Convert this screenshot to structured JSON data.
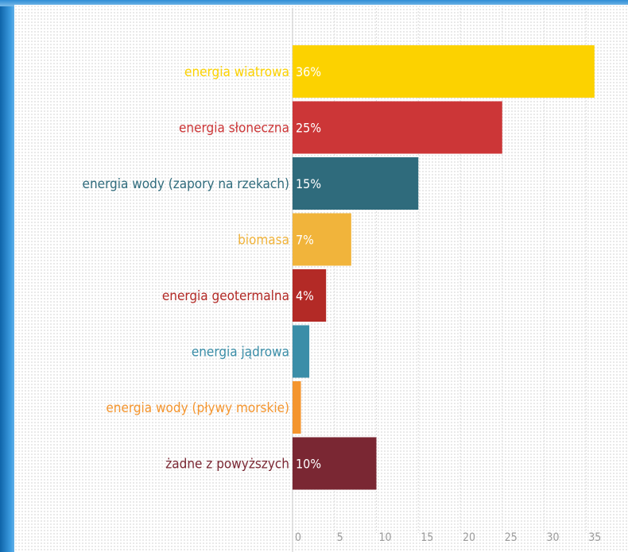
{
  "chart_data": {
    "type": "bar",
    "orientation": "horizontal",
    "title": "",
    "xlabel": "",
    "ylabel": "",
    "categories": [
      "energia wiatrowa",
      "energia słoneczna",
      "energia wody (zapory na rzekach)",
      "biomasa",
      "energia geotermalna",
      "energia jądrowa",
      "energia wody (pływy morskie)",
      "żadne z powyższych"
    ],
    "values": [
      36,
      25,
      15,
      7,
      4,
      2,
      1,
      10
    ],
    "value_labels": [
      "36%",
      "25%",
      "15%",
      "7%",
      "4%",
      "",
      "",
      "10%"
    ],
    "colors": [
      "#fcd200",
      "#cc3637",
      "#2f6b7c",
      "#f1b43b",
      "#b32a26",
      "#3b8ea8",
      "#f4952e",
      "#7a2733"
    ],
    "xlim": [
      0,
      37
    ],
    "ticks": [
      0,
      5,
      10,
      15,
      20,
      25,
      30,
      35
    ],
    "tick_labels": [
      "0",
      "5",
      "10",
      "15",
      "20",
      "25",
      "30",
      "35"
    ],
    "grid": true
  }
}
